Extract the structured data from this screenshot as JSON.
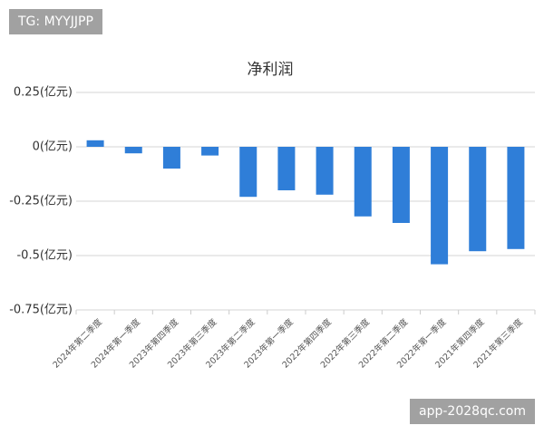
{
  "chart_data": {
    "type": "bar",
    "title": "净利润",
    "categories": [
      "2024年第二季度",
      "2024年第一季度",
      "2023年第四季度",
      "2023年第三季度",
      "2023年第二季度",
      "2023年第一季度",
      "2022年第四季度",
      "2022年第三季度",
      "2022年第二季度",
      "2022年第一季度",
      "2021年第四季度",
      "2021年第三季度"
    ],
    "values": [
      0.03,
      -0.03,
      -0.1,
      -0.04,
      -0.23,
      -0.2,
      -0.22,
      -0.32,
      -0.35,
      -0.54,
      -0.48,
      -0.47
    ],
    "color": "#2f7ed8",
    "ylim": [
      -0.75,
      0.25
    ],
    "yticks": [
      {
        "value": 0.25,
        "label": "0.25(亿元)"
      },
      {
        "value": 0,
        "label": "0(亿元)"
      },
      {
        "value": -0.25,
        "label": "-0.25(亿元)"
      },
      {
        "value": -0.5,
        "label": "-0.5(亿元)"
      },
      {
        "value": -0.75,
        "label": "-0.75(亿元)"
      }
    ],
    "grid": true
  },
  "watermarks": [
    "TG: MYYJJPP",
    "app-2028qc.com"
  ]
}
